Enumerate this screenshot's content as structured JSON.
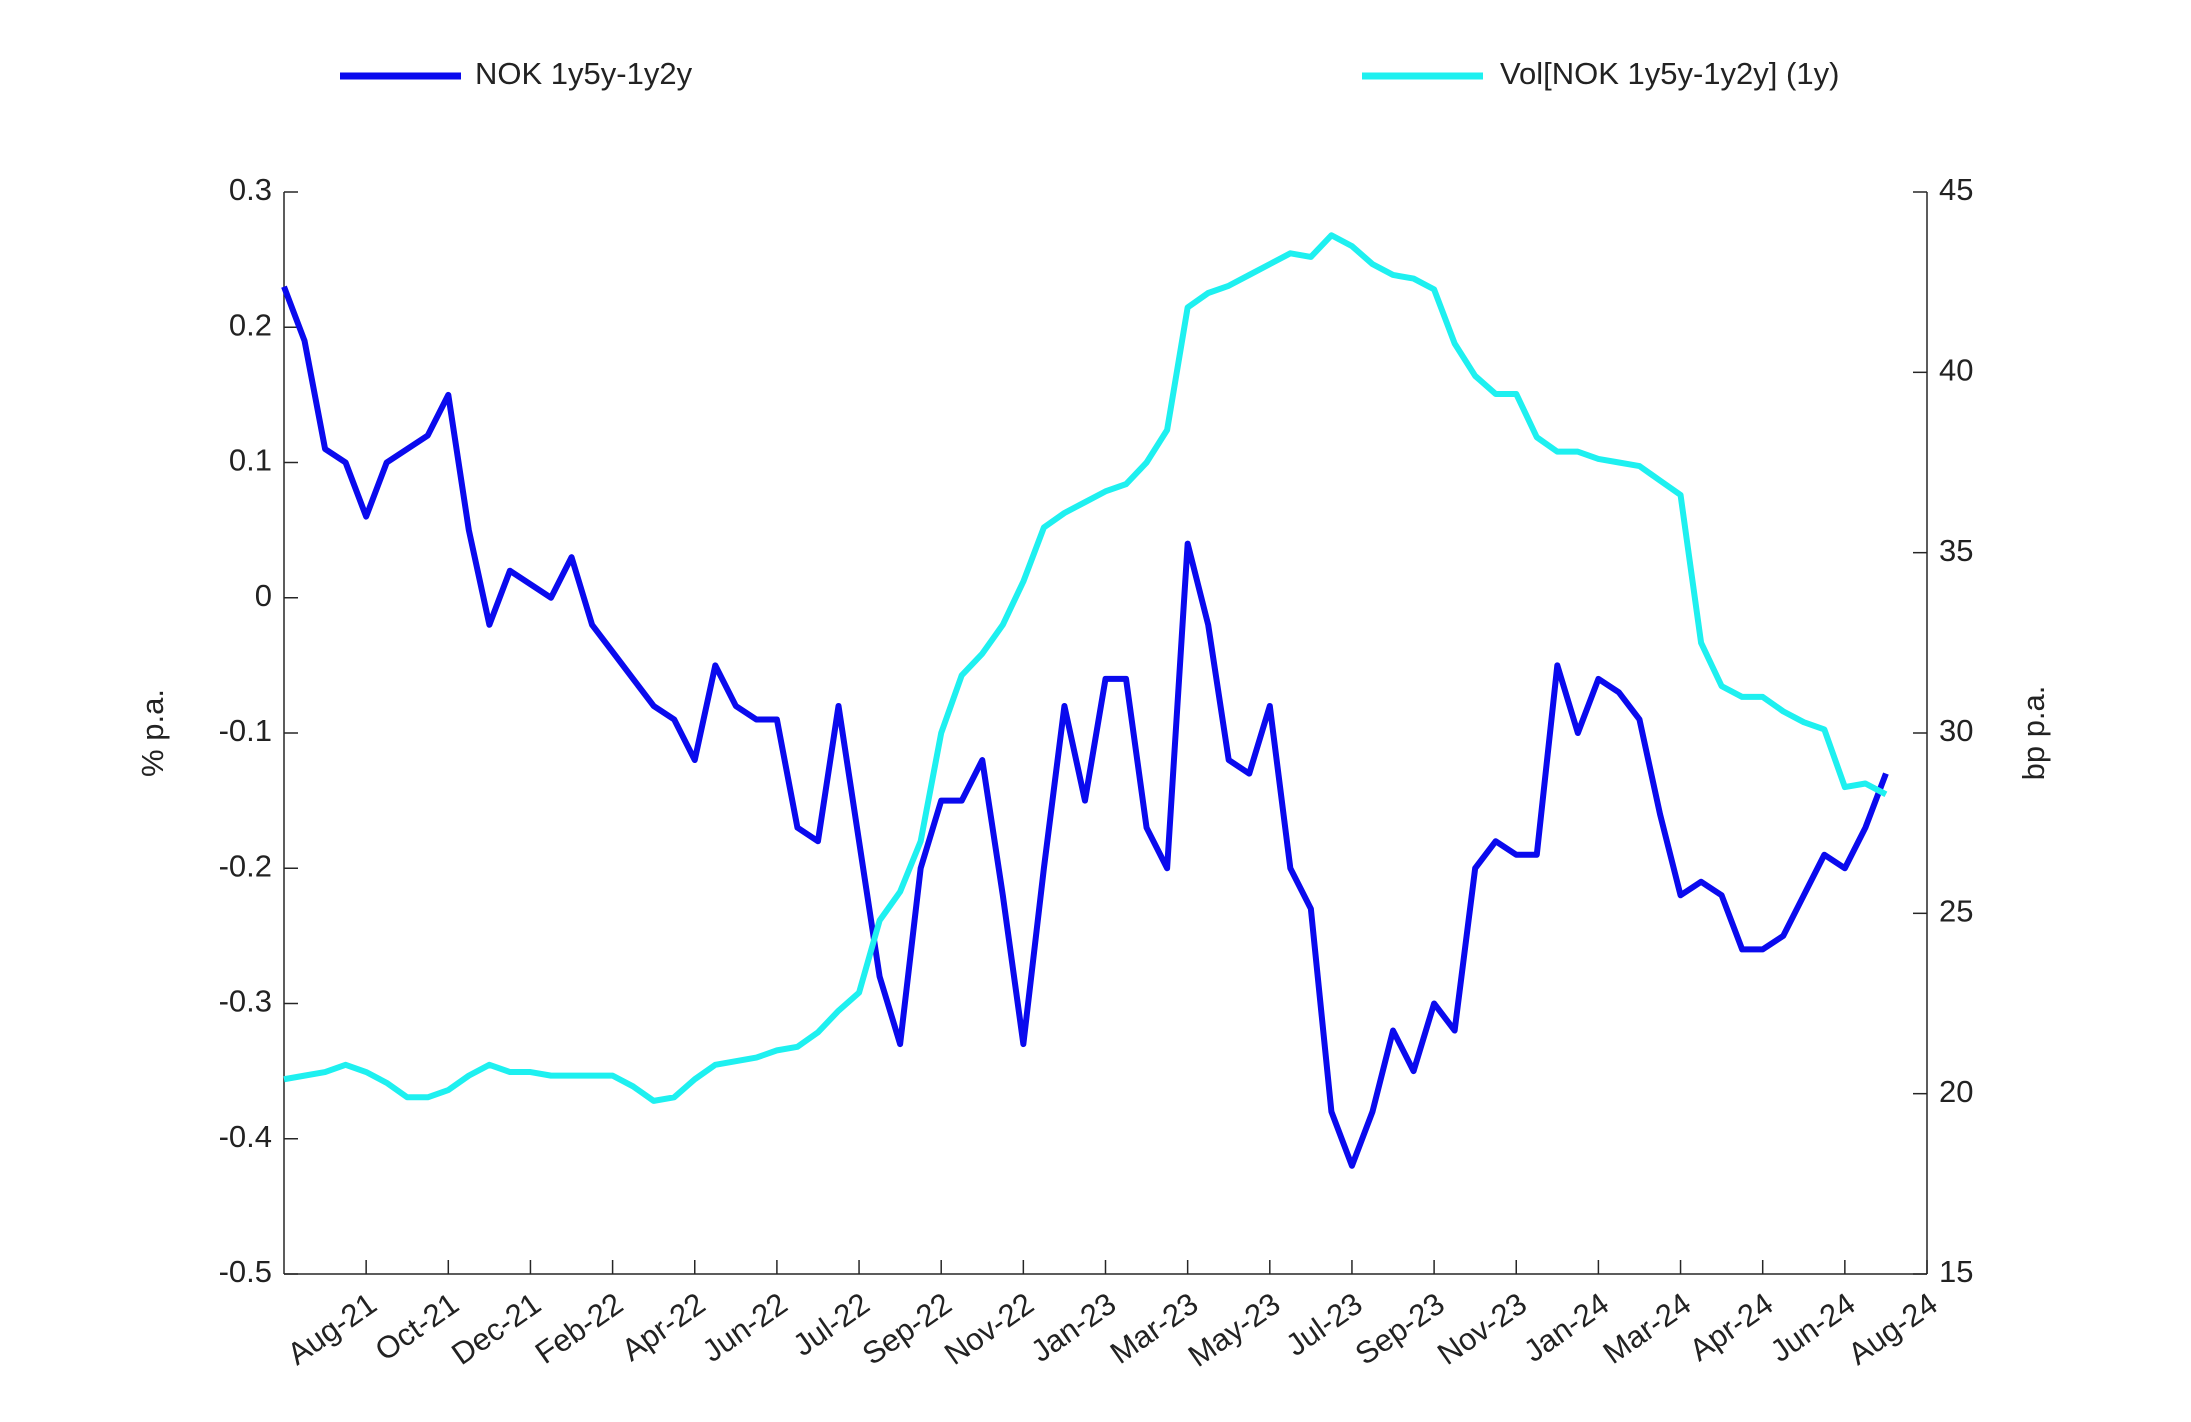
{
  "chart_data": {
    "type": "line",
    "categories": [
      null,
      null,
      null,
      null,
      "Aug-21",
      null,
      null,
      null,
      "Oct-21",
      null,
      null,
      null,
      "Dec-21",
      null,
      null,
      null,
      "Feb-22",
      null,
      null,
      null,
      "Apr-22",
      null,
      null,
      null,
      "Jun-22",
      null,
      null,
      null,
      "Jul-22",
      null,
      null,
      null,
      "Sep-22",
      null,
      null,
      null,
      "Nov-22",
      null,
      null,
      null,
      "Jan-23",
      null,
      null,
      null,
      "Mar-23",
      null,
      null,
      null,
      "May-23",
      null,
      null,
      null,
      "Jul-23",
      null,
      null,
      null,
      "Sep-23",
      null,
      null,
      null,
      "Nov-23",
      null,
      null,
      null,
      "Jan-24",
      null,
      null,
      null,
      "Mar-24",
      null,
      null,
      null,
      "Apr-24",
      null,
      null,
      null,
      "Jun-24",
      null,
      null,
      null,
      "Aug-24"
    ],
    "series": [
      {
        "name": "NOK 1y5y-1y2y",
        "color": "#0a0aee",
        "values": [
          0.23,
          0.19,
          0.11,
          0.1,
          0.06,
          0.1,
          0.11,
          0.12,
          0.15,
          0.05,
          -0.02,
          0.02,
          0.01,
          0.0,
          0.03,
          -0.02,
          -0.04,
          -0.06,
          -0.08,
          -0.09,
          -0.12,
          -0.05,
          -0.08,
          -0.09,
          -0.09,
          -0.17,
          -0.18,
          -0.08,
          -0.18,
          -0.28,
          -0.33,
          -0.2,
          -0.15,
          -0.15,
          -0.12,
          -0.22,
          -0.33,
          -0.2,
          -0.08,
          -0.15,
          -0.06,
          -0.06,
          -0.17,
          -0.2,
          0.04,
          -0.02,
          -0.12,
          -0.13,
          -0.08,
          -0.2,
          -0.23,
          -0.38,
          -0.42,
          -0.38,
          -0.32,
          -0.35,
          -0.3,
          -0.32,
          -0.2,
          -0.18,
          -0.19,
          -0.19,
          -0.05,
          -0.1,
          -0.06,
          -0.07,
          -0.09,
          -0.16,
          -0.22,
          -0.21,
          -0.22,
          -0.26,
          -0.26,
          -0.25,
          -0.22,
          -0.19,
          -0.2,
          -0.17,
          -0.13,
          null,
          null
        ]
      },
      {
        "name": "Vol[NOK 1y5y-1y2y] (1y)",
        "color": "#1ef0f0",
        "axis": "y2",
        "values": [
          20.4,
          20.5,
          20.6,
          20.8,
          20.6,
          20.3,
          19.9,
          19.9,
          20.1,
          20.5,
          20.8,
          20.6,
          20.6,
          20.5,
          20.5,
          20.5,
          20.5,
          20.2,
          19.8,
          19.9,
          20.4,
          20.8,
          20.9,
          21.0,
          21.2,
          21.3,
          21.7,
          22.3,
          22.8,
          24.8,
          25.6,
          27.0,
          30.0,
          31.6,
          32.2,
          33.0,
          34.2,
          35.7,
          36.1,
          36.4,
          36.7,
          36.9,
          37.5,
          38.4,
          41.8,
          42.2,
          42.4,
          42.7,
          43.0,
          43.3,
          43.2,
          43.8,
          43.5,
          43.0,
          42.7,
          42.6,
          42.3,
          40.8,
          39.9,
          39.4,
          39.4,
          38.2,
          37.8,
          37.8,
          37.6,
          37.5,
          37.4,
          37.0,
          36.6,
          32.5,
          31.3,
          31.0,
          31.0,
          30.6,
          30.3,
          30.1,
          28.5,
          28.6,
          28.3,
          null,
          null
        ]
      }
    ],
    "ylabel": "% p.a.",
    "y2label": "bp p.a.",
    "ylim": [
      -0.5,
      0.3
    ],
    "yticks": [
      -0.5,
      -0.4,
      -0.3,
      -0.2,
      -0.1,
      0,
      0.1,
      0.2,
      0.3
    ],
    "y2lim": [
      15,
      45
    ],
    "y2ticks": [
      15,
      20,
      25,
      30,
      35,
      40,
      45
    ],
    "legend": "top",
    "grid": false
  }
}
